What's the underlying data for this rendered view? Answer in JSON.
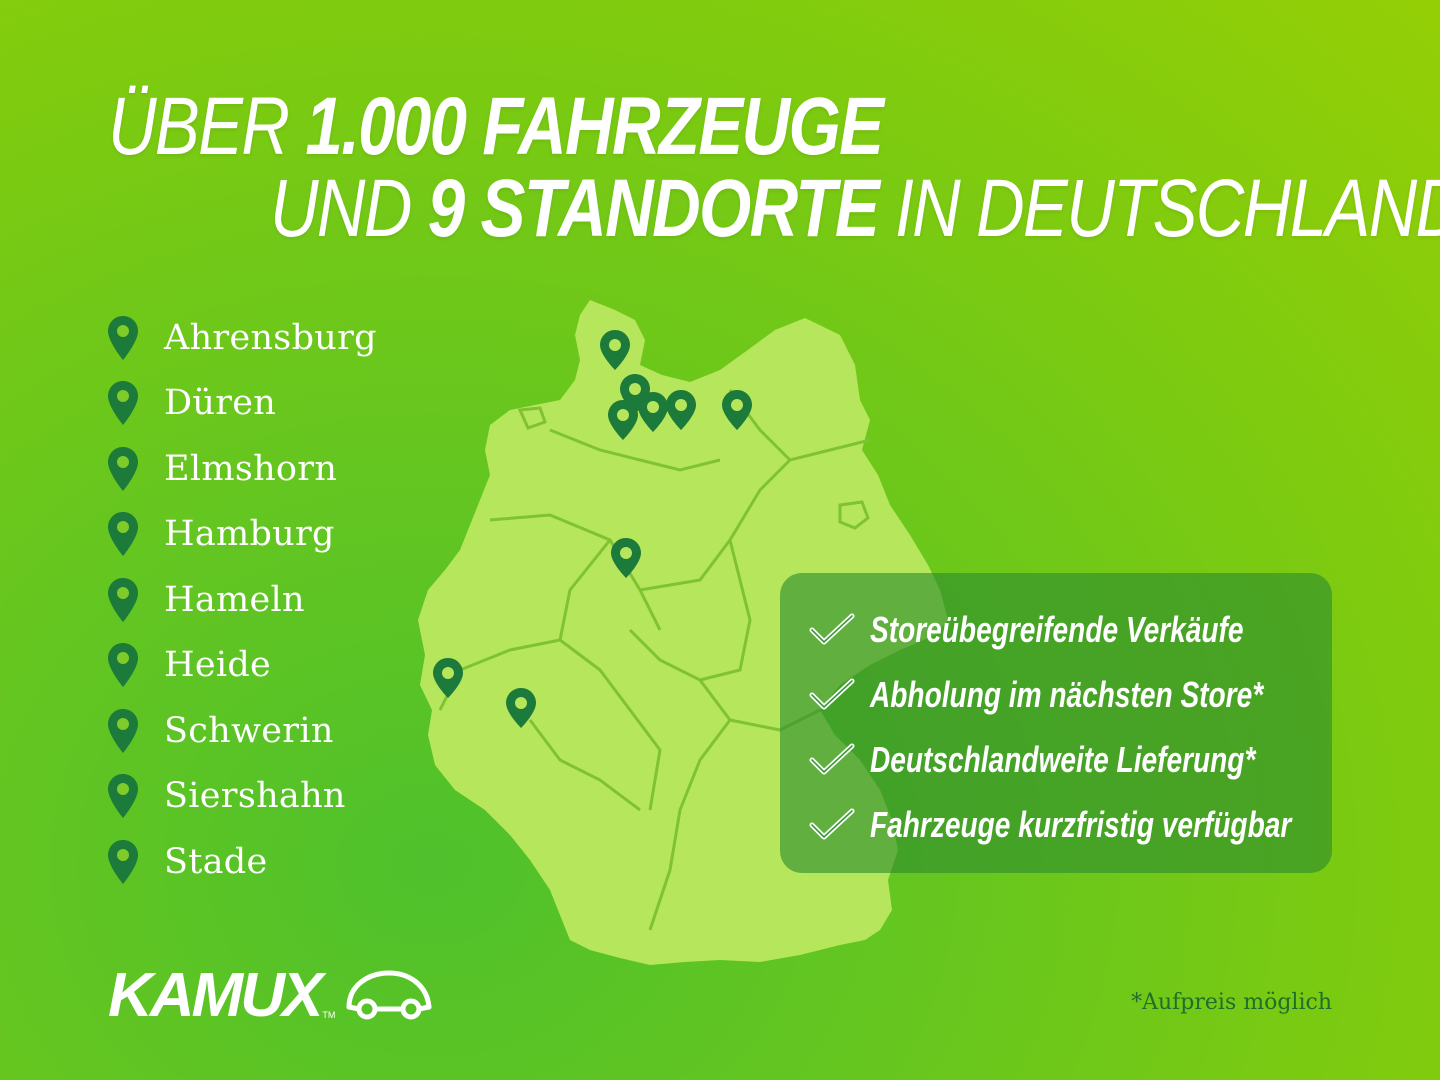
{
  "headline": {
    "line1_prefix": "ÜBER",
    "line1_bold": "1.000 FAHRZEUGE",
    "line2_prefix": "UND",
    "line2_bold": "9 STANDORTE",
    "line2_suffix": "IN DEUTSCHLAND"
  },
  "locations": [
    "Ahrensburg",
    "Düren",
    "Elmshorn",
    "Hamburg",
    "Hameln",
    "Heide",
    "Schwerin",
    "Siershahn",
    "Stade"
  ],
  "features": [
    "Storeübegreifende Verkäufe",
    "Abholung im nächsten Store*",
    "Deutschlandweite Lieferung*",
    "Fahrzeuge kurzfristig verfügbar"
  ],
  "brand": {
    "name": "KAMUX",
    "tm": "TM"
  },
  "footnote": "*Aufpreis möglich",
  "colors": {
    "pin": "#1c7a3a",
    "map_fill": "#b6e65c",
    "map_borders": "#7fc233",
    "panel": "#2d8c2d",
    "text": "#ffffff",
    "footnote": "#1f6e2a"
  },
  "icons": {
    "location": "map-pin-icon",
    "feature": "checkmark-icon",
    "logo": "car-outline-icon"
  }
}
